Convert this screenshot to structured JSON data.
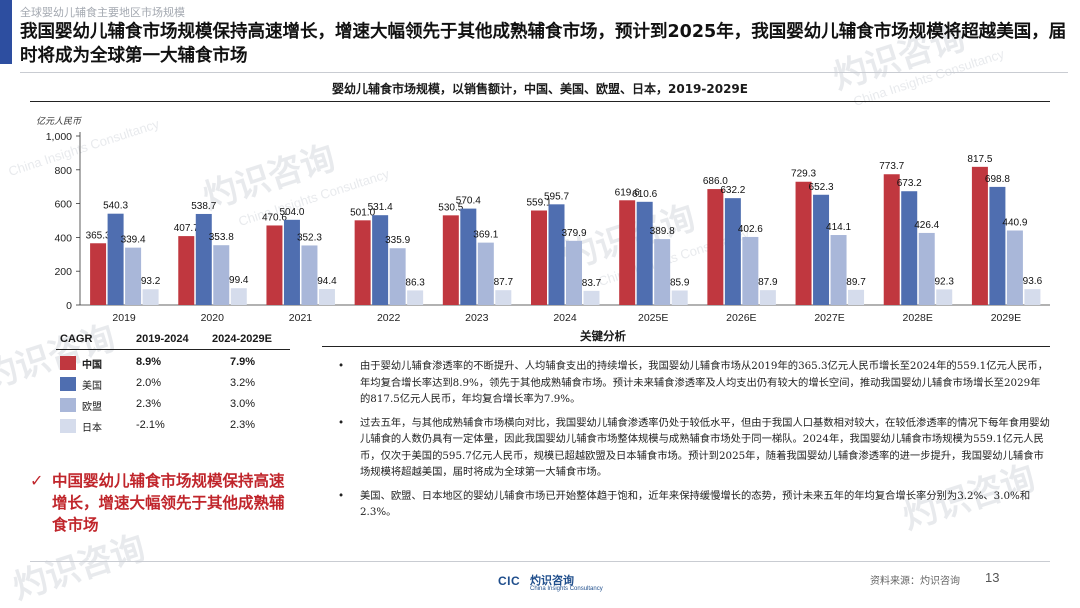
{
  "colors": {
    "accent": "#2d4ea0",
    "china": "#c0373f",
    "us": "#4f6eb0",
    "eu": "#a9b7d9",
    "japan": "#d5dcec",
    "conclusion": "#c0252b"
  },
  "header": {
    "breadcrumb": "全球婴幼儿辅食主要地区市场规模",
    "headline": "我国婴幼儿辅食市场规模保持高速增长，增速大幅领先于其他成熟辅食市场，预计到2025年，我国婴幼儿辅食市场规模将超越美国，届时将成为全球第一大辅食市场"
  },
  "chart_data": {
    "type": "bar",
    "title": "婴幼儿辅食市场规模，以销售额计，中国、美国、欧盟、日本，2019-2029E",
    "ylabel": "亿元人民币",
    "xlabel": "",
    "ylim": [
      0,
      1000
    ],
    "yticks": [
      "0",
      "200",
      "400",
      "600",
      "800",
      "1,000"
    ],
    "ytick_values": [
      0,
      200,
      400,
      600,
      800,
      1000
    ],
    "categories": [
      "2019",
      "2020",
      "2021",
      "2022",
      "2023",
      "2024",
      "2025E",
      "2026E",
      "2027E",
      "2028E",
      "2029E"
    ],
    "value_labels": {
      "中国": [
        "365.3",
        "407.7",
        "470.6",
        "501.0",
        "530.5",
        "559.1",
        "619.6",
        "686.0",
        "729.3",
        "773.7",
        "817.5"
      ],
      "美国": [
        "540.3",
        "538.7",
        "504.0",
        "531.4",
        "570.4",
        "595.7",
        "610.6",
        "632.2",
        "652.3",
        "673.2",
        "698.8"
      ],
      "欧盟": [
        "339.4",
        "353.8",
        "352.3",
        "335.9",
        "369.1",
        "379.9",
        "389.8",
        "402.6",
        "414.1",
        "426.4",
        "440.9"
      ],
      "日本": [
        "93.2",
        "99.4",
        "94.4",
        "86.3",
        "87.7",
        "83.7",
        "85.9",
        "87.9",
        "89.7",
        "92.3",
        "93.6"
      ]
    },
    "series": [
      {
        "name": "中国",
        "values": [
          365.3,
          407.7,
          470.6,
          501.0,
          530.5,
          559.1,
          619.6,
          686.0,
          729.3,
          773.7,
          817.5
        ]
      },
      {
        "name": "美国",
        "values": [
          540.3,
          538.7,
          504.0,
          531.4,
          570.4,
          595.7,
          610.6,
          632.2,
          652.3,
          673.2,
          698.8
        ]
      },
      {
        "name": "欧盟",
        "values": [
          339.4,
          353.8,
          352.3,
          335.9,
          369.1,
          379.9,
          389.8,
          402.6,
          414.1,
          426.4,
          440.9
        ]
      },
      {
        "name": "日本",
        "values": [
          93.2,
          99.4,
          94.4,
          86.3,
          87.7,
          83.7,
          85.9,
          87.9,
          89.7,
          92.3,
          93.6
        ]
      }
    ]
  },
  "cagr": {
    "header_label": "CAGR",
    "period1": "2019-2024",
    "period2": "2024-2029E",
    "rows": [
      {
        "name": "中国",
        "v1": "8.9%",
        "v2": "7.9%"
      },
      {
        "name": "美国",
        "v1": "2.0%",
        "v2": "3.2%"
      },
      {
        "name": "欧盟",
        "v1": "2.3%",
        "v2": "3.0%"
      },
      {
        "name": "日本",
        "v1": "-2.1%",
        "v2": "2.3%"
      }
    ]
  },
  "conclusion": {
    "check": "✓",
    "text": "中国婴幼儿辅食市场规模保持高速增长，增速大幅领先于其他成熟辅食市场"
  },
  "analysis": {
    "title": "关键分析",
    "bullet_symbol": "•",
    "bullets": [
      "由于婴幼儿辅食渗透率的不断提升、人均辅食支出的持续增长，我国婴幼儿辅食市场从2019年的365.3亿元人民币增长至2024年的559.1亿元人民币，年均复合增长率达到8.9%，领先于其他成熟辅食市场。预计未来辅食渗透率及人均支出仍有较大的增长空间，推动我国婴幼儿辅食市场增长至2029年的817.5亿元人民币，年均复合增长率为7.9%。",
      "过去五年，与其他成熟辅食市场横向对比，我国婴幼儿辅食渗透率仍处于较低水平，但由于我国人口基数相对较大，在较低渗透率的情况下每年食用婴幼儿辅食的人数仍具有一定体量，因此我国婴幼儿辅食市场整体规模与成熟辅食市场处于同一梯队。2024年，我国婴幼儿辅食市场规模为559.1亿元人民币，仅次于美国的595.7亿元人民币，规模已超越欧盟及日本辅食市场。预计到2025年，随着我国婴幼儿辅食渗透率的进一步提升，我国婴幼儿辅食市场规模将超越美国，届时将成为全球第一大辅食市场。",
      "美国、欧盟、日本地区的婴幼儿辅食市场已开始整体趋于饱和，近年来保持缓慢增长的态势，预计未来五年的年均复合增长率分别为3.2%、3.0%和2.3%。"
    ]
  },
  "footer": {
    "source": "资料来源：灼识咨询",
    "page": "13",
    "logo_mark": "CIC",
    "logo_name": "灼识咨询",
    "logo_sub": "China Insights Consultancy"
  },
  "watermark": {
    "big": "灼识咨询",
    "small": "China Insights Consultancy"
  }
}
